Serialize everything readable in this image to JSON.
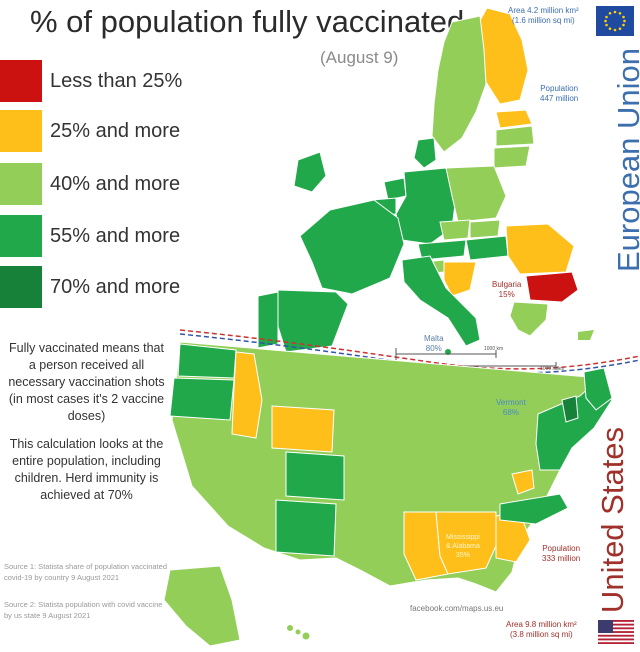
{
  "title": "% of population fully vaccinated",
  "subtitle": "(August 9)",
  "colors": {
    "lt25": "#cc1111",
    "p25": "#ffbf1a",
    "p40": "#93cf58",
    "p55": "#20a84a",
    "p70": "#17813a",
    "eu_blue": "#3b6fae",
    "us_red": "#a0302a"
  },
  "legend": [
    {
      "label": "Less than 25%",
      "color": "#cc1111"
    },
    {
      "label": "25% and more",
      "color": "#ffbf1a"
    },
    {
      "label": "40% and more",
      "color": "#93cf58"
    },
    {
      "label": "55% and more",
      "color": "#20a84a"
    },
    {
      "label": "70% and more",
      "color": "#17813a"
    }
  ],
  "notes": {
    "definition": "Fully vaccinated means that a person received all necessary vaccination shots (in most cases it's 2 vaccine doses)",
    "calculation": "This calculation looks at the entire population, including children. Herd immunity is achieved at 70%"
  },
  "sources": {
    "source1": "Source 1: Statista share of population vaccinated covid-19 by country 9 August 2021",
    "source2": "Source 2: Statista population with covid vaccine by us state 9 August 2021"
  },
  "eu": {
    "name": "European Union",
    "area": "Area 4.2 million km²",
    "area_sub": "(1.6 million sq mi)",
    "population": "Population",
    "population_value": "447 million",
    "bulgaria_name": "Bulgaria",
    "bulgaria_value": "15%",
    "malta_name": "Malta",
    "malta_value": "80%",
    "scale_km": "1000 km",
    "scale_mi": "1000 miles"
  },
  "us": {
    "name": "United States",
    "area": "Area 9.8 million km²",
    "area_sub": "(3.8 million sq mi)",
    "population": "Population",
    "population_value": "333 million",
    "vermont_name": "Vermont",
    "vermont_value": "68%",
    "ms_al_name": "Mississippi",
    "ms_al_name2": "& Alabama",
    "ms_al_value": "35%"
  },
  "watermark": "facebook.com/maps.us.eu"
}
